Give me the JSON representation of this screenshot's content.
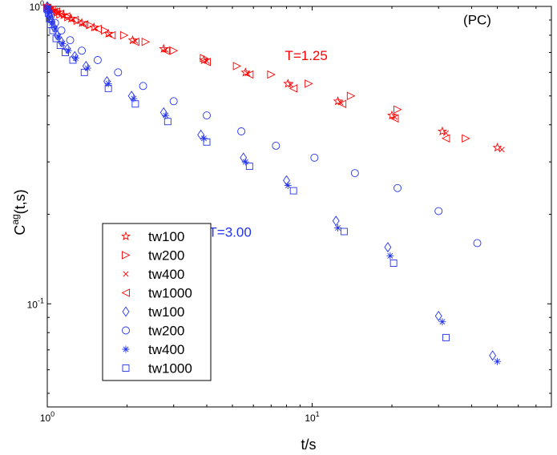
{
  "chart_data": {
    "type": "scatter",
    "xscale": "log",
    "yscale": "log",
    "xlim": [
      1,
      80
    ],
    "ylim": [
      0.045,
      1.0
    ],
    "xlabel": "t/s",
    "ylabel_base": "C",
    "ylabel_sup": "ag",
    "ylabel_tail": "(t,s)",
    "x_ticks": [
      {
        "value": 1,
        "base": "10",
        "exp": "0"
      },
      {
        "value": 10,
        "base": "10",
        "exp": "1"
      }
    ],
    "y_ticks": [
      {
        "value": 0.1,
        "base": "10",
        "exp": "-1"
      },
      {
        "value": 1,
        "base": "10",
        "exp": "0"
      }
    ],
    "annotations": [
      {
        "text": "(PC)",
        "x": 42,
        "y": 0.87,
        "color": "#000000"
      },
      {
        "text": "T=1.25",
        "x": 9.5,
        "y": 0.66,
        "color": "#ff0000"
      },
      {
        "text": "T=3.00",
        "x": 4.9,
        "y": 0.168,
        "color": "#2233ee"
      }
    ],
    "colors": {
      "red": "#ff0000",
      "blue": "#2233ee"
    },
    "series": [
      {
        "name": "tw100",
        "group": "T=1.25",
        "marker": "star",
        "color": "#ff0000",
        "x": [
          1.0,
          1.02,
          1.05,
          1.09,
          1.15,
          1.23,
          1.35,
          1.5,
          1.7,
          2.1,
          2.75,
          3.9,
          5.6,
          8.1,
          12.5,
          20,
          31,
          50
        ],
        "y": [
          1.0,
          0.985,
          0.97,
          0.955,
          0.935,
          0.91,
          0.88,
          0.85,
          0.81,
          0.77,
          0.72,
          0.66,
          0.6,
          0.55,
          0.48,
          0.43,
          0.38,
          0.335
        ]
      },
      {
        "name": "tw200",
        "group": "T=1.25",
        "marker": "tri-right",
        "color": "#ff0000",
        "x": [
          1.0,
          1.03,
          1.07,
          1.12,
          1.2,
          1.3,
          1.45,
          1.65,
          1.95,
          2.35,
          3.0,
          3.9,
          5.2,
          7.0,
          9.7,
          14,
          21,
          38
        ],
        "y": [
          0.99,
          0.975,
          0.96,
          0.94,
          0.92,
          0.895,
          0.865,
          0.83,
          0.8,
          0.76,
          0.71,
          0.67,
          0.63,
          0.59,
          0.55,
          0.5,
          0.45,
          0.36
        ]
      },
      {
        "name": "tw400",
        "group": "T=1.25",
        "marker": "x",
        "color": "#ff0000",
        "x": [
          1.0,
          1.03,
          1.06,
          1.1,
          1.16,
          1.25,
          1.37,
          1.52,
          1.72,
          2.15,
          2.8,
          4.0,
          5.7,
          8.3,
          12.8,
          20.5,
          32,
          52
        ],
        "y": [
          0.995,
          0.98,
          0.965,
          0.95,
          0.93,
          0.905,
          0.875,
          0.845,
          0.805,
          0.765,
          0.715,
          0.655,
          0.595,
          0.545,
          0.475,
          0.425,
          0.375,
          0.33
        ]
      },
      {
        "name": "tw1000",
        "group": "T=1.25",
        "marker": "tri-left",
        "color": "#ff0000",
        "x": [
          1.0,
          1.04,
          1.08,
          1.12,
          1.18,
          1.27,
          1.38,
          1.55,
          1.75,
          2.15,
          2.8,
          4.0,
          5.8,
          8.5,
          13,
          20.5,
          32
        ],
        "y": [
          0.99,
          0.975,
          0.96,
          0.945,
          0.925,
          0.9,
          0.87,
          0.84,
          0.8,
          0.76,
          0.71,
          0.65,
          0.59,
          0.53,
          0.47,
          0.42,
          0.36
        ]
      },
      {
        "name": "tw100",
        "group": "T=3.00",
        "marker": "diamond",
        "color": "#2233ee",
        "x": [
          1.0,
          1.01,
          1.02,
          1.04,
          1.06,
          1.09,
          1.13,
          1.19,
          1.27,
          1.4,
          1.68,
          2.08,
          2.75,
          3.8,
          5.5,
          8.0,
          12.3,
          19.3,
          30,
          48
        ],
        "y": [
          1.0,
          0.97,
          0.93,
          0.89,
          0.85,
          0.8,
          0.76,
          0.72,
          0.68,
          0.63,
          0.56,
          0.5,
          0.44,
          0.37,
          0.31,
          0.26,
          0.19,
          0.155,
          0.091,
          0.067
        ]
      },
      {
        "name": "tw200",
        "group": "T=3.00",
        "marker": "circle",
        "color": "#2233ee",
        "x": [
          1.0,
          1.03,
          1.07,
          1.13,
          1.22,
          1.35,
          1.55,
          1.85,
          2.3,
          3.0,
          4.0,
          5.4,
          7.3,
          10.2,
          14.5,
          21,
          30,
          42
        ],
        "y": [
          0.97,
          0.93,
          0.88,
          0.83,
          0.77,
          0.71,
          0.66,
          0.6,
          0.54,
          0.48,
          0.43,
          0.38,
          0.34,
          0.31,
          0.275,
          0.245,
          0.205,
          0.16
        ]
      },
      {
        "name": "tw400",
        "group": "T=3.00",
        "marker": "asterisk",
        "color": "#2233ee",
        "x": [
          1.0,
          1.01,
          1.02,
          1.04,
          1.07,
          1.1,
          1.14,
          1.2,
          1.28,
          1.42,
          1.7,
          2.12,
          2.8,
          3.9,
          5.6,
          8.1,
          12.5,
          19.7,
          31,
          50
        ],
        "y": [
          0.99,
          0.96,
          0.92,
          0.88,
          0.84,
          0.79,
          0.75,
          0.71,
          0.67,
          0.62,
          0.55,
          0.49,
          0.43,
          0.36,
          0.3,
          0.25,
          0.18,
          0.145,
          0.087,
          0.064
        ]
      },
      {
        "name": "tw1000",
        "group": "T=3.00",
        "marker": "square",
        "color": "#2233ee",
        "x": [
          1.0,
          1.01,
          1.02,
          1.03,
          1.05,
          1.08,
          1.12,
          1.17,
          1.25,
          1.38,
          1.7,
          2.15,
          2.85,
          4.0,
          5.8,
          8.5,
          13.2,
          20.3,
          32
        ],
        "y": [
          0.98,
          0.95,
          0.91,
          0.87,
          0.83,
          0.78,
          0.74,
          0.7,
          0.66,
          0.6,
          0.53,
          0.47,
          0.41,
          0.35,
          0.29,
          0.24,
          0.175,
          0.137,
          0.077
        ]
      }
    ],
    "legend": {
      "placement": "lower-left",
      "entries": [
        {
          "label": "tw100",
          "marker": "star",
          "color": "#ff0000"
        },
        {
          "label": "tw200",
          "marker": "tri-right",
          "color": "#ff0000"
        },
        {
          "label": "tw400",
          "marker": "x",
          "color": "#ff0000"
        },
        {
          "label": "tw1000",
          "marker": "tri-left",
          "color": "#ff0000"
        },
        {
          "label": "tw100",
          "marker": "diamond",
          "color": "#2233ee"
        },
        {
          "label": "tw200",
          "marker": "circle",
          "color": "#2233ee"
        },
        {
          "label": "tw400",
          "marker": "asterisk",
          "color": "#2233ee"
        },
        {
          "label": "tw1000",
          "marker": "square",
          "color": "#2233ee"
        }
      ]
    }
  }
}
